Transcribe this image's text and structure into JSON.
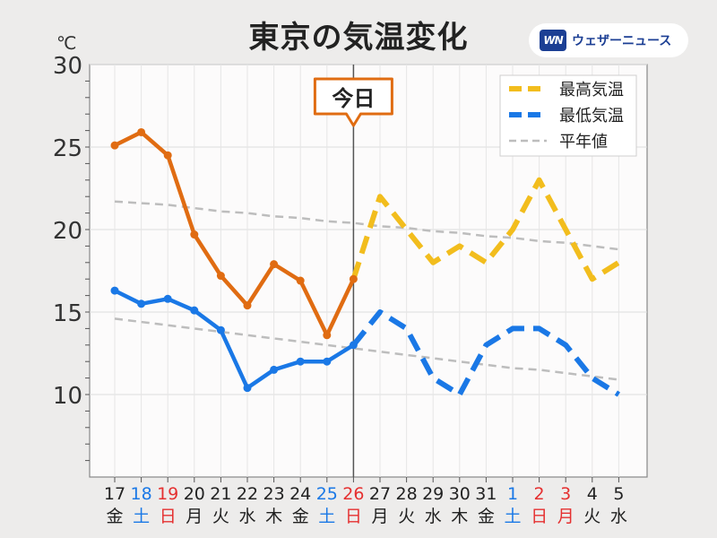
{
  "header": {
    "title": "東京の気温変化",
    "brand_logo": "WN",
    "brand_name": "ウェザーニュース"
  },
  "colors": {
    "max": "#f2bd1d",
    "min": "#1a78e6",
    "past_max": "#e06c12",
    "normal": "#bdbdbd",
    "weekday": "#222222",
    "saturday": "#1a78e6",
    "sunday_holiday": "#e53030"
  },
  "chart_data": {
    "type": "line",
    "title": "東京の気温変化",
    "unit": "℃",
    "ylim": [
      5,
      30
    ],
    "yticks": [
      10,
      15,
      20,
      25,
      30
    ],
    "grid": true,
    "legend_position": "top-right",
    "today_label": "今日",
    "today_index": 9,
    "x": [
      {
        "day": "17",
        "weekday": "金",
        "type": "weekday"
      },
      {
        "day": "18",
        "weekday": "土",
        "type": "saturday"
      },
      {
        "day": "19",
        "weekday": "日",
        "type": "holiday"
      },
      {
        "day": "20",
        "weekday": "月",
        "type": "weekday"
      },
      {
        "day": "21",
        "weekday": "火",
        "type": "weekday"
      },
      {
        "day": "22",
        "weekday": "水",
        "type": "weekday"
      },
      {
        "day": "23",
        "weekday": "木",
        "type": "weekday"
      },
      {
        "day": "24",
        "weekday": "金",
        "type": "weekday"
      },
      {
        "day": "25",
        "weekday": "土",
        "type": "saturday"
      },
      {
        "day": "26",
        "weekday": "日",
        "type": "holiday"
      },
      {
        "day": "27",
        "weekday": "月",
        "type": "weekday"
      },
      {
        "day": "28",
        "weekday": "火",
        "type": "weekday"
      },
      {
        "day": "29",
        "weekday": "水",
        "type": "weekday"
      },
      {
        "day": "30",
        "weekday": "木",
        "type": "weekday"
      },
      {
        "day": "31",
        "weekday": "金",
        "type": "weekday"
      },
      {
        "day": "1",
        "weekday": "土",
        "type": "saturday"
      },
      {
        "day": "2",
        "weekday": "日",
        "type": "holiday"
      },
      {
        "day": "3",
        "weekday": "月",
        "type": "holiday"
      },
      {
        "day": "4",
        "weekday": "火",
        "type": "weekday"
      },
      {
        "day": "5",
        "weekday": "水",
        "type": "weekday"
      }
    ],
    "series": [
      {
        "name": "最高気温",
        "values": [
          25.1,
          25.9,
          24.5,
          19.7,
          17.2,
          15.4,
          17.9,
          16.9,
          13.6,
          17.0,
          22,
          20,
          18,
          19,
          18,
          20,
          23,
          20,
          17,
          18
        ]
      },
      {
        "name": "最低気温",
        "values": [
          16.3,
          15.5,
          15.8,
          15.1,
          13.9,
          10.4,
          11.5,
          12.0,
          12.0,
          13.0,
          15,
          14,
          11,
          10,
          13,
          14,
          14,
          13,
          11,
          10
        ]
      },
      {
        "name": "平年値",
        "values": [
          21.7,
          21.6,
          21.5,
          21.3,
          21.1,
          21.0,
          20.8,
          20.7,
          20.5,
          20.4,
          20.2,
          20.1,
          19.9,
          19.8,
          19.6,
          19.5,
          19.3,
          19.2,
          19.0,
          18.8
        ],
        "secondary_values": [
          14.6,
          14.4,
          14.2,
          14.0,
          13.8,
          13.6,
          13.4,
          13.2,
          13.0,
          12.8,
          12.6,
          12.4,
          12.2,
          12.0,
          11.8,
          11.6,
          11.5,
          11.3,
          11.1,
          10.9
        ]
      }
    ]
  }
}
